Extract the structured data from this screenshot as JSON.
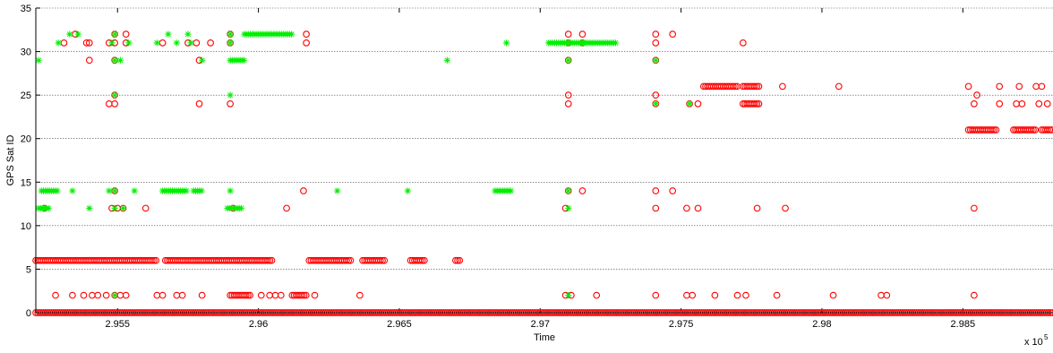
{
  "chart_data": {
    "type": "scatter",
    "title": "",
    "xlabel": "Time",
    "ylabel": "GPS Sat ID",
    "x_exponent_label": "x 10",
    "x_exponent_power": "5",
    "xlim": [
      2.9521,
      2.9882
    ],
    "ylim": [
      0,
      35
    ],
    "xticks": [
      2.955,
      2.96,
      2.965,
      2.97,
      2.975,
      2.98,
      2.985
    ],
    "xtick_labels": [
      "2.955",
      "2.96",
      "2.965",
      "2.97",
      "2.975",
      "2.98",
      "2.985"
    ],
    "yticks": [
      0,
      5,
      10,
      15,
      20,
      25,
      30,
      35
    ],
    "ytick_labels": [
      "0",
      "5",
      "10",
      "15",
      "20",
      "25",
      "30",
      "35"
    ],
    "grid": "y-major",
    "series": [
      {
        "marker": "circle",
        "color": "#ff0000",
        "runs": [
          {
            "y": 0,
            "x0": 2.9521,
            "x1": 2.9882
          },
          {
            "y": 6,
            "x0": 2.9521,
            "x1": 2.9564
          },
          {
            "y": 6,
            "x0": 2.9567,
            "x1": 2.9605
          },
          {
            "y": 6,
            "x0": 2.9618,
            "x1": 2.9633
          },
          {
            "y": 6,
            "x0": 2.9637,
            "x1": 2.9645
          },
          {
            "y": 6,
            "x0": 2.9654,
            "x1": 2.9659
          },
          {
            "y": 6,
            "x0": 2.967,
            "x1": 2.9672
          },
          {
            "y": 26,
            "x0": 2.9758,
            "x1": 2.977
          },
          {
            "y": 26,
            "x0": 2.9772,
            "x1": 2.9778
          },
          {
            "y": 24,
            "x0": 2.9772,
            "x1": 2.9778
          },
          {
            "y": 21,
            "x0": 2.9852,
            "x1": 2.9862
          },
          {
            "y": 21,
            "x0": 2.9868,
            "x1": 2.9876
          },
          {
            "y": 21,
            "x0": 2.9878,
            "x1": 2.9882
          },
          {
            "y": 2,
            "x0": 2.959,
            "x1": 2.9597
          },
          {
            "y": 2,
            "x0": 2.9612,
            "x1": 2.9617
          }
        ],
        "points": [
          [
            2.9528,
            2
          ],
          [
            2.9534,
            2
          ],
          [
            2.9538,
            2
          ],
          [
            2.9541,
            2
          ],
          [
            2.9543,
            2
          ],
          [
            2.9546,
            2
          ],
          [
            2.9549,
            2
          ],
          [
            2.9551,
            2
          ],
          [
            2.9553,
            2
          ],
          [
            2.9564,
            2
          ],
          [
            2.9566,
            2
          ],
          [
            2.9571,
            2
          ],
          [
            2.9573,
            2
          ],
          [
            2.958,
            2
          ],
          [
            2.9601,
            2
          ],
          [
            2.9604,
            2
          ],
          [
            2.9606,
            2
          ],
          [
            2.9608,
            2
          ],
          [
            2.962,
            2
          ],
          [
            2.9636,
            2
          ],
          [
            2.9709,
            2
          ],
          [
            2.9711,
            2
          ],
          [
            2.972,
            2
          ],
          [
            2.9741,
            2
          ],
          [
            2.9752,
            2
          ],
          [
            2.9754,
            2
          ],
          [
            2.9762,
            2
          ],
          [
            2.977,
            2
          ],
          [
            2.9773,
            2
          ],
          [
            2.9784,
            2
          ],
          [
            2.9804,
            2
          ],
          [
            2.9821,
            2
          ],
          [
            2.9823,
            2
          ],
          [
            2.9854,
            2
          ],
          [
            2.9524,
            12
          ],
          [
            2.9548,
            12
          ],
          [
            2.955,
            12
          ],
          [
            2.9552,
            12
          ],
          [
            2.956,
            12
          ],
          [
            2.9591,
            12
          ],
          [
            2.961,
            12
          ],
          [
            2.9709,
            12
          ],
          [
            2.9741,
            12
          ],
          [
            2.9752,
            12
          ],
          [
            2.9756,
            12
          ],
          [
            2.9777,
            12
          ],
          [
            2.9787,
            12
          ],
          [
            2.9854,
            12
          ],
          [
            2.9549,
            14
          ],
          [
            2.9616,
            14
          ],
          [
            2.971,
            14
          ],
          [
            2.9715,
            14
          ],
          [
            2.9741,
            14
          ],
          [
            2.9747,
            14
          ],
          [
            2.9547,
            24
          ],
          [
            2.9549,
            24
          ],
          [
            2.9579,
            24
          ],
          [
            2.959,
            24
          ],
          [
            2.971,
            24
          ],
          [
            2.9741,
            24
          ],
          [
            2.9753,
            24
          ],
          [
            2.9756,
            24
          ],
          [
            2.9854,
            24
          ],
          [
            2.9863,
            24
          ],
          [
            2.9869,
            24
          ],
          [
            2.9871,
            24
          ],
          [
            2.9877,
            24
          ],
          [
            2.988,
            24
          ],
          [
            2.9549,
            25
          ],
          [
            2.971,
            25
          ],
          [
            2.9741,
            25
          ],
          [
            2.9855,
            25
          ],
          [
            2.9786,
            26
          ],
          [
            2.9806,
            26
          ],
          [
            2.9852,
            26
          ],
          [
            2.9863,
            26
          ],
          [
            2.987,
            26
          ],
          [
            2.9876,
            26
          ],
          [
            2.9878,
            26
          ],
          [
            2.954,
            29
          ],
          [
            2.9549,
            29
          ],
          [
            2.9579,
            29
          ],
          [
            2.971,
            29
          ],
          [
            2.9741,
            29
          ],
          [
            2.9531,
            31
          ],
          [
            2.9539,
            31
          ],
          [
            2.954,
            31
          ],
          [
            2.9547,
            31
          ],
          [
            2.9549,
            31
          ],
          [
            2.9553,
            31
          ],
          [
            2.9566,
            31
          ],
          [
            2.9575,
            31
          ],
          [
            2.9578,
            31
          ],
          [
            2.9583,
            31
          ],
          [
            2.959,
            31
          ],
          [
            2.9617,
            31
          ],
          [
            2.971,
            31
          ],
          [
            2.9715,
            31
          ],
          [
            2.9741,
            31
          ],
          [
            2.9772,
            31
          ],
          [
            2.9535,
            32
          ],
          [
            2.9549,
            32
          ],
          [
            2.9553,
            32
          ],
          [
            2.959,
            32
          ],
          [
            2.9617,
            32
          ],
          [
            2.971,
            32
          ],
          [
            2.9715,
            32
          ],
          [
            2.9741,
            32
          ],
          [
            2.9747,
            32
          ]
        ]
      },
      {
        "marker": "asterisk",
        "color": "#00ee00",
        "runs": [
          {
            "y": 14,
            "x0": 2.9523,
            "x1": 2.9529
          },
          {
            "y": 14,
            "x0": 2.9566,
            "x1": 2.9575
          },
          {
            "y": 14,
            "x0": 2.9577,
            "x1": 2.958
          },
          {
            "y": 14,
            "x0": 2.9684,
            "x1": 2.969
          },
          {
            "y": 12,
            "x0": 2.9522,
            "x1": 2.9526
          },
          {
            "y": 12,
            "x0": 2.9589,
            "x1": 2.9594
          },
          {
            "y": 32,
            "x0": 2.9595,
            "x1": 2.9612
          },
          {
            "y": 31,
            "x0": 2.9703,
            "x1": 2.9727
          },
          {
            "y": 29,
            "x0": 2.959,
            "x1": 2.9595
          }
        ],
        "points": [
          [
            2.9534,
            14
          ],
          [
            2.9547,
            14
          ],
          [
            2.9549,
            14
          ],
          [
            2.9556,
            14
          ],
          [
            2.959,
            14
          ],
          [
            2.9628,
            14
          ],
          [
            2.9653,
            14
          ],
          [
            2.971,
            14
          ],
          [
            2.954,
            12
          ],
          [
            2.9549,
            12
          ],
          [
            2.9552,
            12
          ],
          [
            2.971,
            12
          ],
          [
            2.9529,
            31
          ],
          [
            2.9548,
            31
          ],
          [
            2.9554,
            31
          ],
          [
            2.9564,
            31
          ],
          [
            2.9571,
            31
          ],
          [
            2.9576,
            31
          ],
          [
            2.959,
            31
          ],
          [
            2.9688,
            31
          ],
          [
            2.971,
            31
          ],
          [
            2.9715,
            31
          ],
          [
            2.9533,
            32
          ],
          [
            2.9536,
            32
          ],
          [
            2.9549,
            32
          ],
          [
            2.9568,
            32
          ],
          [
            2.9575,
            32
          ],
          [
            2.959,
            32
          ],
          [
            2.9522,
            29
          ],
          [
            2.9549,
            29
          ],
          [
            2.9551,
            29
          ],
          [
            2.958,
            29
          ],
          [
            2.9667,
            29
          ],
          [
            2.971,
            29
          ],
          [
            2.9741,
            29
          ],
          [
            2.9549,
            25
          ],
          [
            2.959,
            25
          ],
          [
            2.9741,
            24
          ],
          [
            2.9753,
            24
          ],
          [
            2.9549,
            2
          ],
          [
            2.971,
            2
          ]
        ]
      }
    ]
  }
}
